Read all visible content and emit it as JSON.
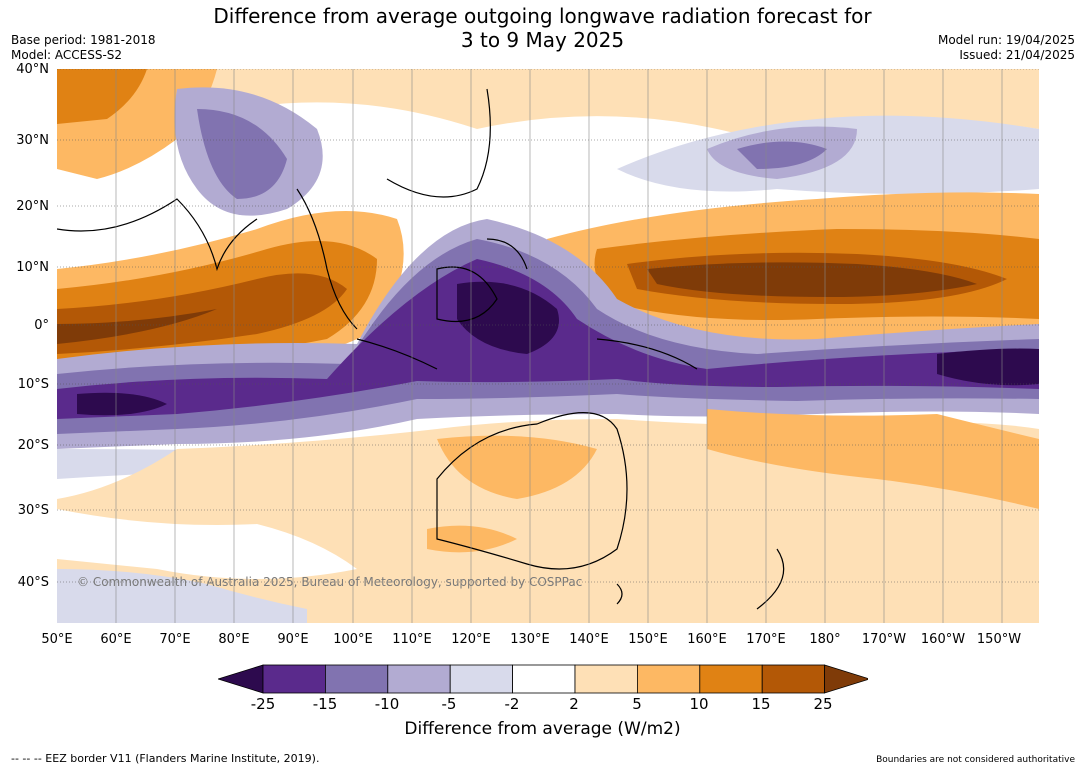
{
  "title_line1": "Difference from average outgoing longwave radiation forecast for",
  "title_line2": "3 to 9 May 2025",
  "base_period": "Base period: 1981-2018",
  "model": "Model: ACCESS-S2",
  "model_run": "Model run: 19/04/2025",
  "issued": "Issued: 21/04/2025",
  "lat_labels": [
    "40°N",
    "30°N",
    "20°N",
    "10°N",
    "0°",
    "10°S",
    "20°S",
    "30°S",
    "40°S"
  ],
  "lon_labels": [
    "50°E",
    "60°E",
    "70°E",
    "80°E",
    "90°E",
    "100°E",
    "110°E",
    "120°E",
    "130°E",
    "140°E",
    "150°E",
    "160°E",
    "170°E",
    "180°",
    "170°W",
    "160°W",
    "150°W"
  ],
  "copyright": "© Commonwealth of Australia 2025, Bureau of Meteorology, supported by COSPPac",
  "colorbar": {
    "ticks": [
      "-25",
      "-15",
      "-10",
      "-5",
      "-2",
      "2",
      "5",
      "10",
      "15",
      "25"
    ],
    "colors": [
      "#2d0a4e",
      "#5a2a8c",
      "#8173b0",
      "#b2abd2",
      "#d8daeb",
      "#ffffff",
      "#fee0b6",
      "#fdb863",
      "#e08214",
      "#b35806",
      "#7f3b08"
    ],
    "label": "Difference from average (W/m2)"
  },
  "eez_legend": "--  --  -- EEZ border V11 (Flanders Marine Institute, 2019).",
  "boundary_note": "Boundaries are not considered authoritative"
}
